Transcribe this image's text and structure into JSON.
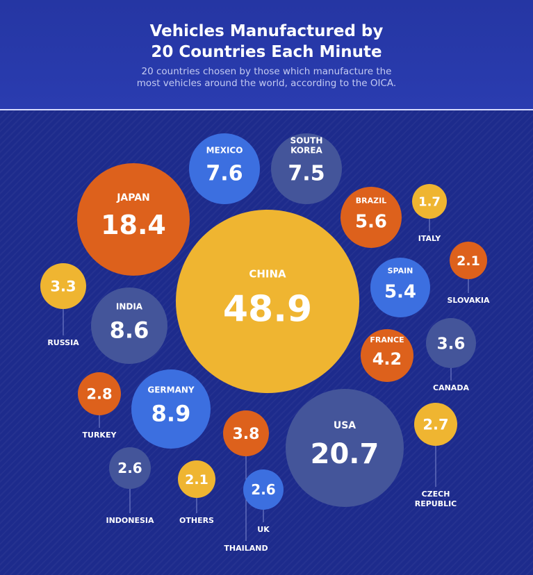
{
  "header": {
    "title_line1": "Vehicles Manufactured by",
    "title_line2": "20 Countries Each Minute",
    "subtitle_line1": "20 countries chosen by those which manufacture the",
    "subtitle_line2": "most vehicles around the world, according to the OICA."
  },
  "colors": {
    "background": "#1d2b8c",
    "yellow": "#efb531",
    "orange": "#dd611c",
    "slate": "#44559a",
    "blue": "#3c6fe0"
  },
  "chart_data": {
    "type": "bubble",
    "title": "Vehicles Manufactured by 20 Countries Each Minute",
    "subtitle": "20 countries chosen by those which manufacture the most vehicles around the world, according to the OICA.",
    "points": [
      {
        "label": "CHINA",
        "value": 48.9,
        "display": "48.9",
        "color": "yellow"
      },
      {
        "label": "USA",
        "value": 20.7,
        "display": "20.7",
        "color": "slate"
      },
      {
        "label": "JAPAN",
        "value": 18.4,
        "display": "18.4",
        "color": "orange"
      },
      {
        "label": "GERMANY",
        "value": 8.9,
        "display": "8.9",
        "color": "blue"
      },
      {
        "label": "INDIA",
        "value": 8.6,
        "display": "8.6",
        "color": "slate"
      },
      {
        "label": "MEXICO",
        "value": 7.6,
        "display": "7.6",
        "color": "blue"
      },
      {
        "label": "SOUTH KOREA",
        "value": 7.5,
        "display": "7.5",
        "color": "slate"
      },
      {
        "label": "BRAZIL",
        "value": 5.6,
        "display": "5.6",
        "color": "orange"
      },
      {
        "label": "SPAIN",
        "value": 5.4,
        "display": "5.4",
        "color": "blue"
      },
      {
        "label": "FRANCE",
        "value": 4.2,
        "display": "4.2",
        "color": "orange"
      },
      {
        "label": "THAILAND",
        "value": 3.8,
        "display": "3.8",
        "color": "orange"
      },
      {
        "label": "CANADA",
        "value": 3.6,
        "display": "3.6",
        "color": "slate"
      },
      {
        "label": "RUSSIA",
        "value": 3.3,
        "display": "3.3",
        "color": "yellow"
      },
      {
        "label": "TURKEY",
        "value": 2.8,
        "display": "2.8",
        "color": "orange"
      },
      {
        "label": "CZECH REPUBLIC",
        "value": 2.7,
        "display": "2.7",
        "color": "yellow"
      },
      {
        "label": "INDONESIA",
        "value": 2.6,
        "display": "2.6",
        "color": "slate"
      },
      {
        "label": "UK",
        "value": 2.6,
        "display": "2.6",
        "color": "blue"
      },
      {
        "label": "SLOVAKIA",
        "value": 2.1,
        "display": "2.1",
        "color": "orange"
      },
      {
        "label": "OTHERS",
        "value": 2.1,
        "display": "2.1",
        "color": "yellow"
      },
      {
        "label": "ITALY",
        "value": 1.7,
        "display": "1.7",
        "color": "yellow"
      }
    ]
  }
}
